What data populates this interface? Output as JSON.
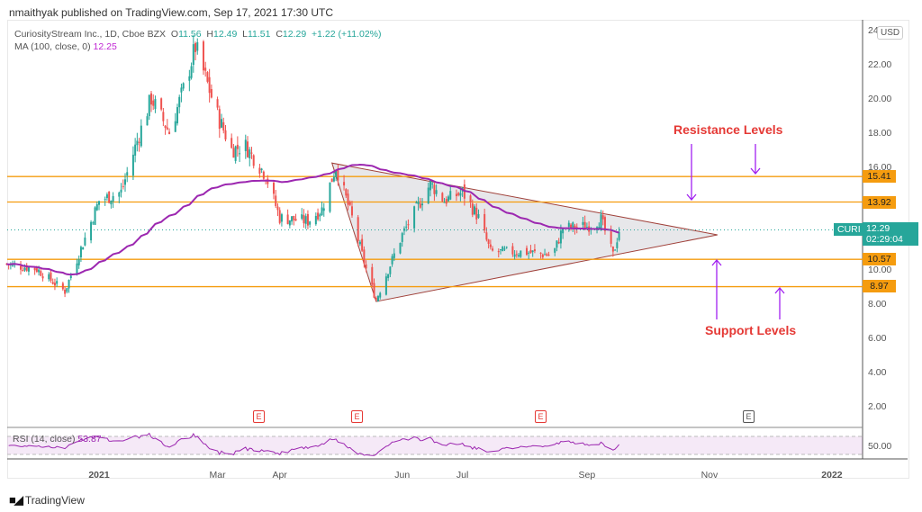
{
  "header": {
    "published": "nmaithyak published on TradingView.com, Sep 17, 2021 17:30 UTC"
  },
  "legend": {
    "symbol": "CuriosityStream Inc., 1D, Cboe BZX",
    "o_label": "O",
    "o": "11.56",
    "h_label": "H",
    "h": "12.49",
    "l_label": "L",
    "l": "11.51",
    "c_label": "C",
    "c": "12.29",
    "change": "+1.22 (+11.02%)",
    "ma_label": "MA (100, close, 0)",
    "ma_value": "12.25"
  },
  "price_axis": {
    "currency": "USD",
    "ticks": [
      "24",
      "22.00",
      "20.00",
      "18.00",
      "16.00",
      "10.00",
      "8.00",
      "6.00",
      "4.00",
      "2.00"
    ]
  },
  "levels": [
    {
      "value": "15.41"
    },
    {
      "value": "13.92"
    },
    {
      "value": "10.57"
    },
    {
      "value": "8.97"
    }
  ],
  "current": {
    "ticker": "CURI",
    "price": "12.29",
    "countdown": "02:29:04"
  },
  "time_axis": {
    "ticks": [
      {
        "label": "2021",
        "date": "2021-01-01"
      },
      {
        "label": "Mar",
        "date": "2021-03-01"
      },
      {
        "label": "Apr",
        "date": "2021-04-01"
      },
      {
        "label": "Jun",
        "date": "2021-06-01"
      },
      {
        "label": "Jul",
        "date": "2021-07-01"
      },
      {
        "label": "Sep",
        "date": "2021-09-01"
      },
      {
        "label": "Nov",
        "date": "2021-11-01"
      },
      {
        "label": "2022",
        "date": "2022-01-01"
      }
    ]
  },
  "annotations": {
    "resistance": "Resistance Levels",
    "support": "Support Levels"
  },
  "earnings": [
    {
      "label": "E",
      "date": "2021-03-25",
      "past": true
    },
    {
      "label": "E",
      "date": "2021-05-14",
      "past": true
    },
    {
      "label": "E",
      "date": "2021-08-16",
      "past": true
    },
    {
      "label": "E",
      "date": "2021-11-10",
      "past": false
    }
  ],
  "rsi": {
    "label": "RSI (14, close)",
    "value": "53.87",
    "axis_label": "50.00"
  },
  "footer": {
    "brand": "TradingView",
    "logo": "17"
  },
  "colors": {
    "up": "#26a69a",
    "down": "#ef5350",
    "ma": "#9c27b0",
    "level": "#f59c0f",
    "triangle": "#a0413a"
  },
  "chart_data": {
    "type": "candlestick",
    "title": "CuriosityStream Inc., 1D, Cboe BZX",
    "ylim": [
      0,
      24
    ],
    "approx_closes": [
      [
        "2020-11-16",
        10.3
      ],
      [
        "2020-12-01",
        10.0
      ],
      [
        "2020-12-15",
        8.7
      ],
      [
        "2020-12-24",
        11.5
      ],
      [
        "2021-01-01",
        14.0
      ],
      [
        "2021-01-12",
        14.5
      ],
      [
        "2021-01-20",
        17.5
      ],
      [
        "2021-01-27",
        20.0
      ],
      [
        "2021-02-05",
        18.0
      ],
      [
        "2021-02-12",
        20.5
      ],
      [
        "2021-02-18",
        23.0
      ],
      [
        "2021-03-01",
        19.0
      ],
      [
        "2021-03-08",
        17.0
      ],
      [
        "2021-03-15",
        17.2
      ],
      [
        "2021-03-25",
        15.5
      ],
      [
        "2021-04-01",
        13.0
      ],
      [
        "2021-04-15",
        12.8
      ],
      [
        "2021-04-22",
        13.5
      ],
      [
        "2021-04-29",
        16.0
      ],
      [
        "2021-05-07",
        13.0
      ],
      [
        "2021-05-14",
        10.0
      ],
      [
        "2021-05-19",
        8.2
      ],
      [
        "2021-06-01",
        12.0
      ],
      [
        "2021-06-15",
        15.0
      ],
      [
        "2021-06-22",
        14.0
      ],
      [
        "2021-07-01",
        14.5
      ],
      [
        "2021-07-09",
        13.0
      ],
      [
        "2021-07-15",
        11.0
      ],
      [
        "2021-08-01",
        11.0
      ],
      [
        "2021-08-15",
        10.8
      ],
      [
        "2021-08-20",
        12.4
      ],
      [
        "2021-09-01",
        12.5
      ],
      [
        "2021-09-08",
        12.9
      ],
      [
        "2021-09-14",
        10.8
      ],
      [
        "2021-09-17",
        12.29
      ]
    ],
    "horizontal_levels": [
      15.41,
      13.92,
      10.57,
      8.97
    ],
    "triangle": [
      [
        "2021-04-27",
        16.2
      ],
      [
        "2021-05-19",
        8.1
      ],
      [
        "2021-11-05",
        12.0
      ]
    ],
    "ma_period": 100
  }
}
